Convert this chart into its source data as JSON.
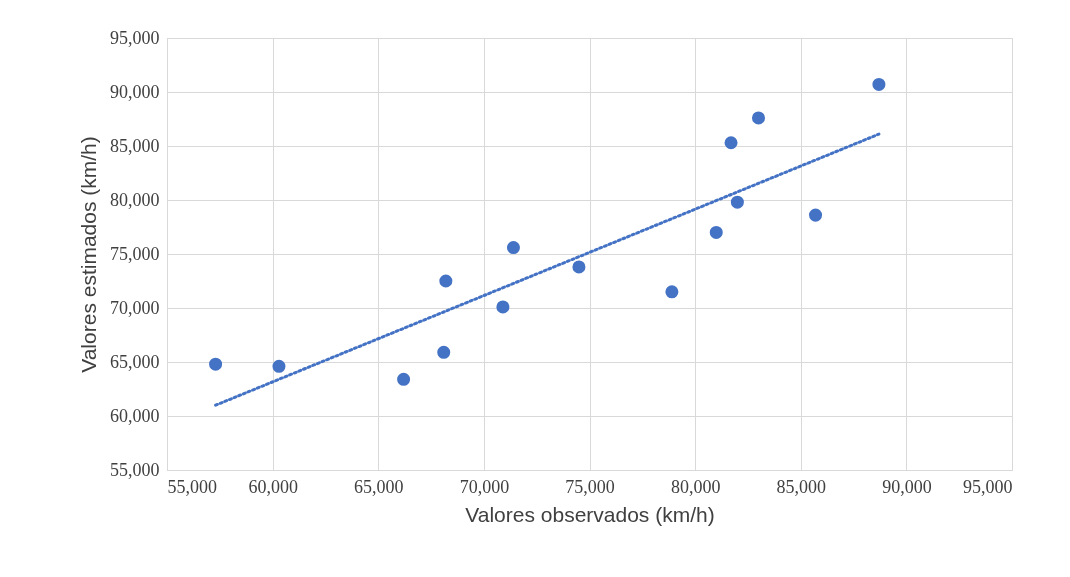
{
  "chart_data": {
    "type": "scatter",
    "xlabel": "Valores observados (km/h)",
    "ylabel": "Valores estimados (km/h)",
    "xlim": [
      55000,
      95000
    ],
    "ylim": [
      55000,
      95000
    ],
    "xticks": [
      {
        "value": 55000,
        "label": "55,000"
      },
      {
        "value": 60000,
        "label": "60,000"
      },
      {
        "value": 65000,
        "label": "65,000"
      },
      {
        "value": 70000,
        "label": "70,000"
      },
      {
        "value": 75000,
        "label": "75,000"
      },
      {
        "value": 80000,
        "label": "80,000"
      },
      {
        "value": 85000,
        "label": "85,000"
      },
      {
        "value": 90000,
        "label": "90,000"
      },
      {
        "value": 95000,
        "label": "95,000"
      }
    ],
    "yticks": [
      {
        "value": 55000,
        "label": "55,000"
      },
      {
        "value": 60000,
        "label": "60,000"
      },
      {
        "value": 65000,
        "label": "65,000"
      },
      {
        "value": 70000,
        "label": "70,000"
      },
      {
        "value": 75000,
        "label": "75,000"
      },
      {
        "value": 80000,
        "label": "80,000"
      },
      {
        "value": 85000,
        "label": "85,000"
      },
      {
        "value": 90000,
        "label": "90,000"
      },
      {
        "value": 95000,
        "label": "95,000"
      }
    ],
    "grid": true,
    "series": [
      {
        "color": "#4472c4",
        "marker": "circle",
        "x": [
          57300,
          60300,
          66200,
          68100,
          68200,
          70900,
          71400,
          74500,
          78900,
          81000,
          81700,
          82000,
          83000,
          85700,
          88700
        ],
        "values": [
          64800,
          64600,
          63400,
          65900,
          72500,
          70100,
          75600,
          73800,
          71500,
          77000,
          85300,
          79800,
          87600,
          78600,
          90700
        ]
      },
      {
        "type": "line",
        "color": "#4472c4",
        "line_style": "dotted",
        "x": [
          57300,
          88700
        ],
        "values": [
          61000,
          86100
        ]
      }
    ]
  }
}
